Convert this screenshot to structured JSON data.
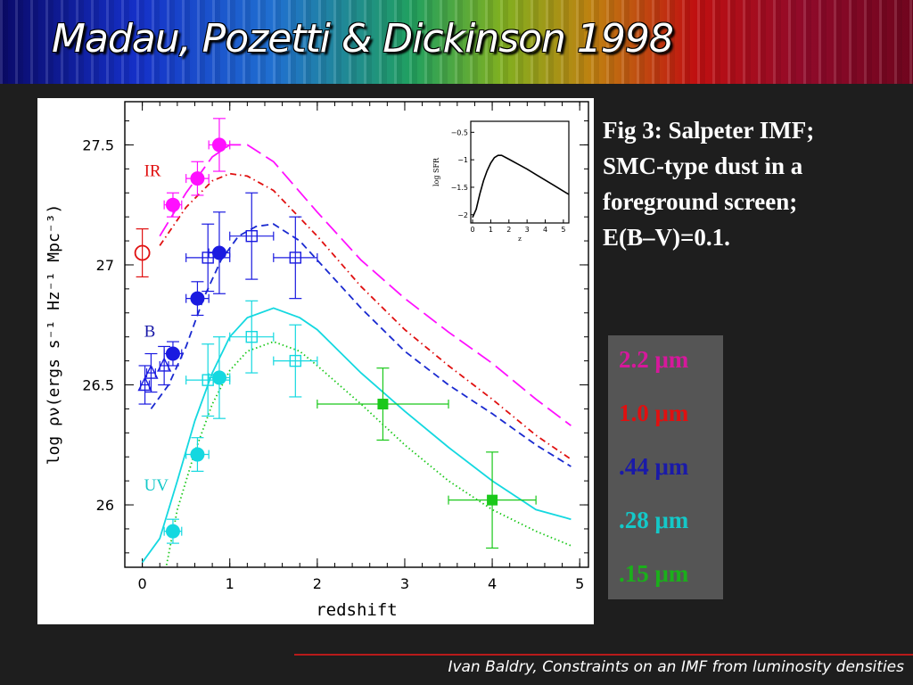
{
  "slide": {
    "title": "Madau, Pozetti & Dickinson 1998",
    "caption_lines": [
      "Fig 3: Salpeter IMF;",
      "SMC-type dust in a",
      "foreground screen;",
      "E(B–V)=0.1."
    ],
    "footer": "Ivan Baldry, Constraints on an IMF from luminosity densities"
  },
  "legend": [
    {
      "label": "2.2 μm",
      "color": "#d6189c"
    },
    {
      "label": "1.0 μm",
      "color": "#e01010"
    },
    {
      "label": ".44 μm",
      "color": "#1a1aa8"
    },
    {
      "label": ".28 μm",
      "color": "#14c8c8"
    },
    {
      "label": ".15 μm",
      "color": "#1ab01a"
    }
  ],
  "chart_data": [
    {
      "type": "scatter",
      "xlabel": "redshift",
      "ylabel": "log ρν(ergs s⁻¹ Hz⁻¹ Mpc⁻³)",
      "xlim": [
        -0.2,
        5.1
      ],
      "ylim": [
        25.74,
        27.68
      ],
      "xticks": [
        0,
        1,
        2,
        3,
        4,
        5
      ],
      "yticks": [
        26,
        26.5,
        27,
        27.5
      ],
      "annotations": [
        {
          "text": "IR",
          "x": 0.02,
          "y": 27.37,
          "color": "#e01010"
        },
        {
          "text": "B",
          "x": 0.02,
          "y": 26.7,
          "color": "#1a1aa8"
        },
        {
          "text": "UV",
          "x": 0.02,
          "y": 26.06,
          "color": "#14c8c8"
        }
      ],
      "series": [
        {
          "color": "#ff10ff",
          "style": "long-dash",
          "kind": "line",
          "x": [
            0.2,
            0.5,
            0.8,
            1.0,
            1.2,
            1.5,
            2.0,
            2.5,
            3.0,
            3.5,
            4.0,
            4.5,
            4.9
          ],
          "y": [
            27.12,
            27.3,
            27.45,
            27.5,
            27.5,
            27.43,
            27.22,
            27.02,
            26.86,
            26.72,
            26.59,
            26.44,
            26.33
          ]
        },
        {
          "color": "#e01010",
          "style": "dash-dot",
          "kind": "line",
          "x": [
            0.2,
            0.5,
            0.8,
            1.0,
            1.2,
            1.5,
            2.0,
            2.5,
            3.0,
            3.5,
            4.0,
            4.5,
            4.9
          ],
          "y": [
            27.08,
            27.24,
            27.35,
            27.38,
            27.37,
            27.31,
            27.12,
            26.91,
            26.73,
            26.58,
            26.44,
            26.29,
            26.19
          ]
        },
        {
          "color": "#1a2ad0",
          "style": "dash",
          "kind": "line",
          "x": [
            0.1,
            0.3,
            0.5,
            0.7,
            0.9,
            1.1,
            1.3,
            1.5,
            1.8,
            2.0,
            2.5,
            3.0,
            3.5,
            4.0,
            4.5,
            4.9
          ],
          "y": [
            26.4,
            26.5,
            26.66,
            26.86,
            27.02,
            27.12,
            27.16,
            27.17,
            27.1,
            27.02,
            26.82,
            26.64,
            26.5,
            26.38,
            26.25,
            26.16
          ]
        },
        {
          "color": "#14d8e0",
          "style": "solid",
          "kind": "line",
          "x": [
            0.0,
            0.2,
            0.4,
            0.6,
            0.8,
            1.0,
            1.2,
            1.5,
            1.8,
            2.0,
            2.5,
            3.0,
            3.5,
            4.0,
            4.5,
            4.9
          ],
          "y": [
            25.76,
            25.86,
            26.1,
            26.35,
            26.55,
            26.7,
            26.78,
            26.82,
            26.78,
            26.73,
            26.55,
            26.39,
            26.24,
            26.1,
            25.98,
            25.94
          ]
        },
        {
          "color": "#1ac81a",
          "style": "dotted",
          "kind": "line",
          "x": [
            0.25,
            0.4,
            0.6,
            0.8,
            1.0,
            1.2,
            1.5,
            1.8,
            2.0,
            2.5,
            3.0,
            3.5,
            4.0,
            4.5,
            4.9
          ],
          "y": [
            25.7,
            25.98,
            26.22,
            26.42,
            26.56,
            26.64,
            26.68,
            26.64,
            26.58,
            26.42,
            26.25,
            26.1,
            25.98,
            25.89,
            25.83
          ]
        },
        {
          "color": "#ff10ff",
          "marker": "filled-circle",
          "kind": "points",
          "x": [
            0.35,
            0.63,
            0.88
          ],
          "y": [
            27.25,
            27.36,
            27.5
          ],
          "yerr": [
            0.05,
            0.07,
            0.11
          ],
          "xerr": [
            0.1,
            0.13,
            0.12
          ]
        },
        {
          "color": "#e01010",
          "marker": "open-circle",
          "kind": "points",
          "x": [
            0.0
          ],
          "y": [
            27.05
          ],
          "yerr": [
            0.1
          ],
          "xerr": [
            0.0
          ]
        },
        {
          "color": "#1a1ae0",
          "marker": "filled-circle",
          "kind": "points",
          "x": [
            0.35,
            0.63,
            0.88
          ],
          "y": [
            26.63,
            26.86,
            27.05
          ],
          "yerr": [
            0.05,
            0.07,
            0.17
          ],
          "xerr": [
            0.1,
            0.13,
            0.12
          ]
        },
        {
          "color": "#1a1ae0",
          "marker": "open-triangle",
          "kind": "points",
          "x": [
            0.03,
            0.1,
            0.25
          ],
          "y": [
            26.5,
            26.55,
            26.58
          ],
          "yerr": [
            0.08,
            0.08,
            0.08
          ],
          "xerr": [
            0.05,
            0.05,
            0.05
          ]
        },
        {
          "color": "#1a1ae0",
          "marker": "open-square",
          "kind": "points",
          "x": [
            0.75,
            1.25,
            1.75
          ],
          "y": [
            27.03,
            27.12,
            27.03
          ],
          "yerr": [
            0.14,
            0.18,
            0.17
          ],
          "xerr": [
            0.25,
            0.25,
            0.25
          ]
        },
        {
          "color": "#14d8e0",
          "marker": "filled-circle",
          "kind": "points",
          "x": [
            0.35,
            0.63,
            0.88
          ],
          "y": [
            25.89,
            26.21,
            26.53
          ],
          "yerr": [
            0.05,
            0.07,
            0.17
          ],
          "xerr": [
            0.1,
            0.13,
            0.12
          ]
        },
        {
          "color": "#14d8e0",
          "marker": "open-square",
          "kind": "points",
          "x": [
            0.75,
            1.25,
            1.75
          ],
          "y": [
            26.52,
            26.7,
            26.6
          ],
          "yerr": [
            0.15,
            0.15,
            0.15
          ],
          "xerr": [
            0.25,
            0.25,
            0.25
          ]
        },
        {
          "color": "#1ac81a",
          "marker": "filled-square",
          "kind": "points",
          "x": [
            2.75,
            4.0
          ],
          "y": [
            26.42,
            26.02
          ],
          "yerr": [
            0.15,
            0.2
          ],
          "xerr": [
            0.75,
            0.5
          ]
        }
      ]
    },
    {
      "type": "line",
      "xlabel": "z",
      "ylabel": "log SFR",
      "xlim": [
        -0.1,
        5.3
      ],
      "ylim": [
        -2.15,
        -0.3
      ],
      "xticks": [
        0,
        1,
        2,
        3,
        4,
        5
      ],
      "yticks": [
        -0.5,
        -1,
        -1.5,
        -2
      ],
      "ytick_labels": [
        "−0.5",
        "−1",
        "−1.5",
        "−2"
      ],
      "series": [
        {
          "color": "#000000",
          "x": [
            0.0,
            0.2,
            0.4,
            0.6,
            0.8,
            1.0,
            1.2,
            1.4,
            1.6,
            2.0,
            2.5,
            3.0,
            3.5,
            4.0,
            4.5,
            5.0,
            5.3
          ],
          "y": [
            -2.05,
            -1.9,
            -1.62,
            -1.38,
            -1.2,
            -1.06,
            -0.96,
            -0.92,
            -0.92,
            -0.99,
            -1.08,
            -1.17,
            -1.27,
            -1.37,
            -1.47,
            -1.57,
            -1.63
          ]
        }
      ]
    }
  ]
}
